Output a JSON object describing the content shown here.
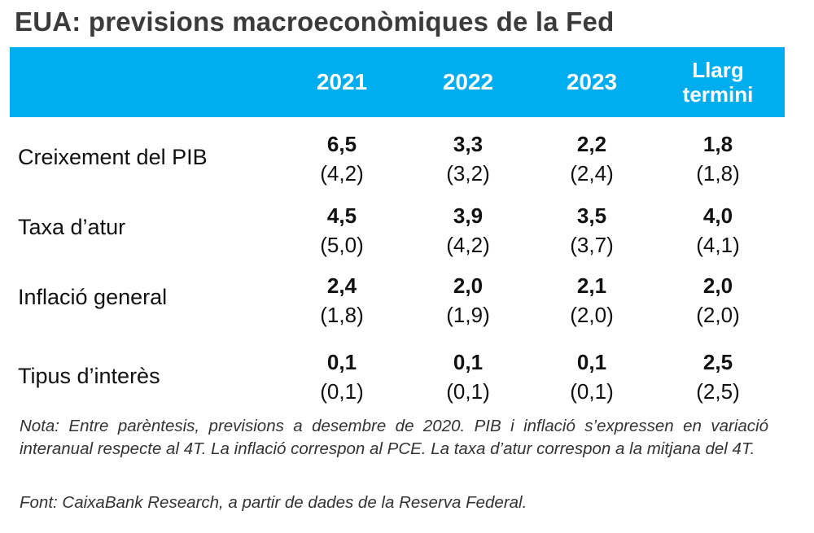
{
  "title": "EUA: previsions macroeconòmiques de la Fed",
  "columns": [
    {
      "label": "2021"
    },
    {
      "label": "2022"
    },
    {
      "label": "2023"
    },
    {
      "label": "Llarg termini"
    }
  ],
  "rows": [
    {
      "label": "Creixement del PIB",
      "values": [
        "6,5",
        "3,3",
        "2,2",
        "1,8"
      ],
      "previous": [
        "(4,2)",
        "(3,2)",
        "(2,4)",
        "(1,8)"
      ]
    },
    {
      "label": "Taxa d’atur",
      "values": [
        "4,5",
        "3,9",
        "3,5",
        "4,0"
      ],
      "previous": [
        "(5,0)",
        "(4,2)",
        "(3,7)",
        "(4,1)"
      ]
    },
    {
      "label": "Inflació general",
      "values": [
        "2,4",
        "2,0",
        "2,1",
        "2,0"
      ],
      "previous": [
        "(1,8)",
        "(1,9)",
        "(2,0)",
        "(2,0)"
      ]
    },
    {
      "label": "Tipus d’interès",
      "values": [
        "0,1",
        "0,1",
        "0,1",
        "2,5"
      ],
      "previous": [
        "(0,1)",
        "(0,1)",
        "(0,1)",
        "(2,5)"
      ]
    }
  ],
  "note": "Nota: Entre parèntesis, previsions a desembre de 2020. PIB i inflació s’expressen en variació interanual respecte al 4T. La inflació correspon al PCE. La taxa d’atur correspon a la mitjana del 4T.",
  "source": "Font: CaixaBank Research, a partir de dades de la Reserva Federal.",
  "colors": {
    "header_background": "#00AEEF",
    "header_text": "#ffffff",
    "title_text": "#3b3b3b"
  },
  "chart_data": {
    "type": "table",
    "title": "EUA: previsions macroeconòmiques de la Fed",
    "columns": [
      "2021",
      "2022",
      "2023",
      "Llarg termini"
    ],
    "rows": [
      {
        "label": "Creixement del PIB",
        "values": [
          6.5,
          3.3,
          2.2,
          1.8
        ],
        "previous": [
          4.2,
          3.2,
          2.4,
          1.8
        ]
      },
      {
        "label": "Taxa d’atur",
        "values": [
          4.5,
          3.9,
          3.5,
          4.0
        ],
        "previous": [
          5.0,
          4.2,
          3.7,
          4.1
        ]
      },
      {
        "label": "Inflació general",
        "values": [
          2.4,
          2.0,
          2.1,
          2.0
        ],
        "previous": [
          1.8,
          1.9,
          2.0,
          2.0
        ]
      },
      {
        "label": "Tipus d’interès",
        "values": [
          0.1,
          0.1,
          0.1,
          2.5
        ],
        "previous": [
          0.1,
          0.1,
          0.1,
          2.5
        ]
      }
    ]
  }
}
